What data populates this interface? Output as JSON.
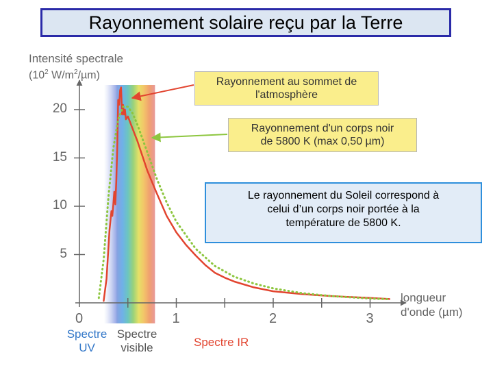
{
  "title": "Rayonnement solaire reçu par la Terre",
  "callouts": {
    "top_of_atmosphere_line1": "Rayonnement au sommet de",
    "top_of_atmosphere_line2": "l'atmosphère",
    "black_body_line1": "Rayonnement d'un corps noir",
    "black_body_line2": "de 5800 K (max 0,50 µm)"
  },
  "info_box": {
    "line1": "Le rayonnement du Soleil correspond à",
    "line2": "celui d’un corps noir portée à la",
    "line3": "température de 5800 K."
  },
  "spectrum_labels": {
    "uv_line1": "Spectre",
    "uv_line2": "UV",
    "visible_line1": "Spectre",
    "visible_line2": "visible",
    "ir": "Spectre IR"
  },
  "colors": {
    "measured": "#e2442f",
    "black_body": "#8dc63f",
    "title_border": "#2a2aa8",
    "info_border": "#2e8fdc",
    "callout_fill": "#faee8c"
  },
  "chart_data": {
    "type": "line",
    "ylabel_line1": "Intensité spectrale",
    "ylabel_line2_prefix": "(10",
    "ylabel_exp1": "2",
    "ylabel_mid": " W/m",
    "ylabel_exp2": "2",
    "ylabel_suffix": "/µm)",
    "xlabel_line1": "longueur",
    "xlabel_line2": "d'onde (µm)",
    "xlim": [
      0,
      3.3
    ],
    "ylim": [
      0,
      23
    ],
    "xticks": [
      0,
      0.5,
      1,
      1.5,
      2,
      2.5,
      3
    ],
    "xtick_labels": [
      "0",
      "",
      "1",
      "",
      "2",
      "",
      "3"
    ],
    "yticks": [
      5,
      10,
      15,
      20
    ],
    "ytick_labels": [
      "5",
      "10",
      "15",
      "20"
    ],
    "visible_band": [
      0.38,
      0.78
    ],
    "series": [
      {
        "key": "measured",
        "style": "solid",
        "x": [
          0.25,
          0.28,
          0.31,
          0.33,
          0.34,
          0.35,
          0.36,
          0.37,
          0.38,
          0.39,
          0.4,
          0.41,
          0.42,
          0.43,
          0.44,
          0.45,
          0.46,
          0.47,
          0.48,
          0.5,
          0.55,
          0.6,
          0.65,
          0.7,
          0.75,
          0.8,
          0.9,
          1.0,
          1.1,
          1.2,
          1.3,
          1.4,
          1.5,
          1.6,
          1.8,
          2.0,
          2.3,
          2.6,
          3.0,
          3.2
        ],
        "y": [
          0.2,
          2.5,
          7.5,
          9.5,
          9.0,
          10.2,
          11.5,
          10.2,
          12.5,
          16.0,
          21.0,
          20.5,
          22.0,
          22.3,
          19.5,
          20.5,
          19.5,
          20.0,
          19.0,
          19.3,
          18.0,
          16.7,
          15.2,
          13.7,
          12.5,
          11.3,
          9.0,
          7.3,
          6.0,
          4.9,
          3.9,
          3.1,
          2.6,
          2.2,
          1.6,
          1.2,
          0.9,
          0.7,
          0.5,
          0.4
        ]
      },
      {
        "key": "black_body",
        "style": "dotted",
        "x": [
          0.2,
          0.25,
          0.3,
          0.35,
          0.4,
          0.45,
          0.5,
          0.55,
          0.6,
          0.65,
          0.7,
          0.8,
          0.9,
          1.0,
          1.2,
          1.4,
          1.6,
          1.8,
          2.0,
          2.3,
          2.6,
          3.0,
          3.2
        ],
        "y": [
          0.5,
          4.5,
          11.0,
          16.0,
          19.0,
          20.3,
          20.3,
          19.6,
          18.4,
          17.0,
          15.6,
          12.8,
          10.4,
          8.4,
          5.6,
          3.8,
          2.7,
          2.0,
          1.5,
          1.0,
          0.7,
          0.45,
          0.38
        ]
      }
    ]
  }
}
